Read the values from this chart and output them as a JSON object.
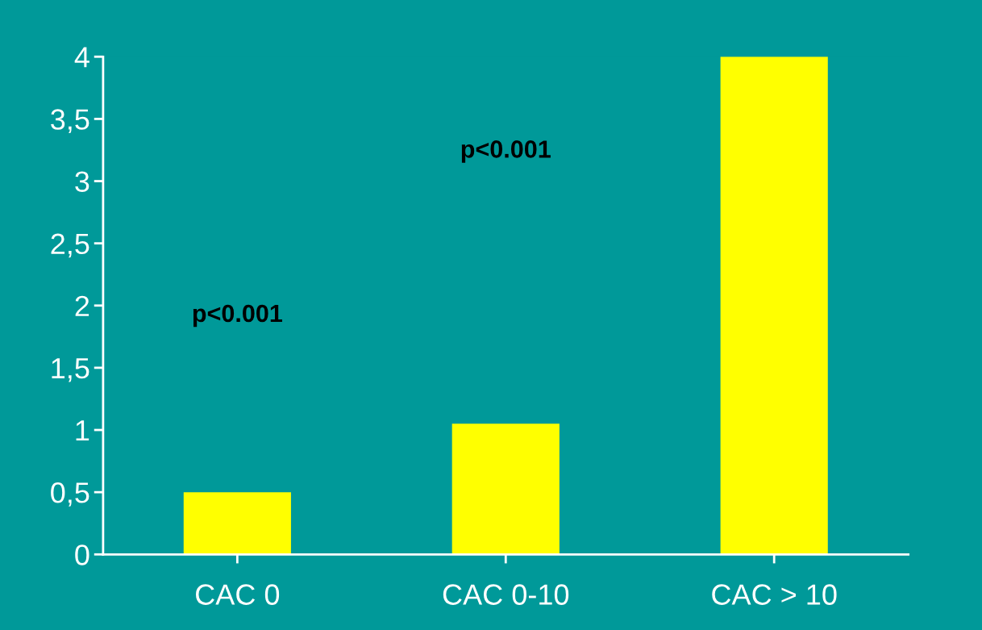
{
  "chart_data": {
    "type": "bar",
    "categories": [
      "CAC 0",
      "CAC 0-10",
      "CAC > 10"
    ],
    "values": [
      0.5,
      1.05,
      4.0
    ],
    "color": "#ffff00",
    "ylim": [
      0,
      4
    ],
    "yticks": [
      0,
      {
        "value": 0.5,
        "label": "0,5"
      },
      1,
      {
        "value": 1.5,
        "label": "1,5"
      },
      2,
      {
        "value": 2.5,
        "label": "2,5"
      },
      3,
      {
        "value": 3.5,
        "label": "3,5"
      },
      4
    ],
    "annotations": [
      "p<0.001",
      "p<0.001"
    ],
    "grid": false
  }
}
